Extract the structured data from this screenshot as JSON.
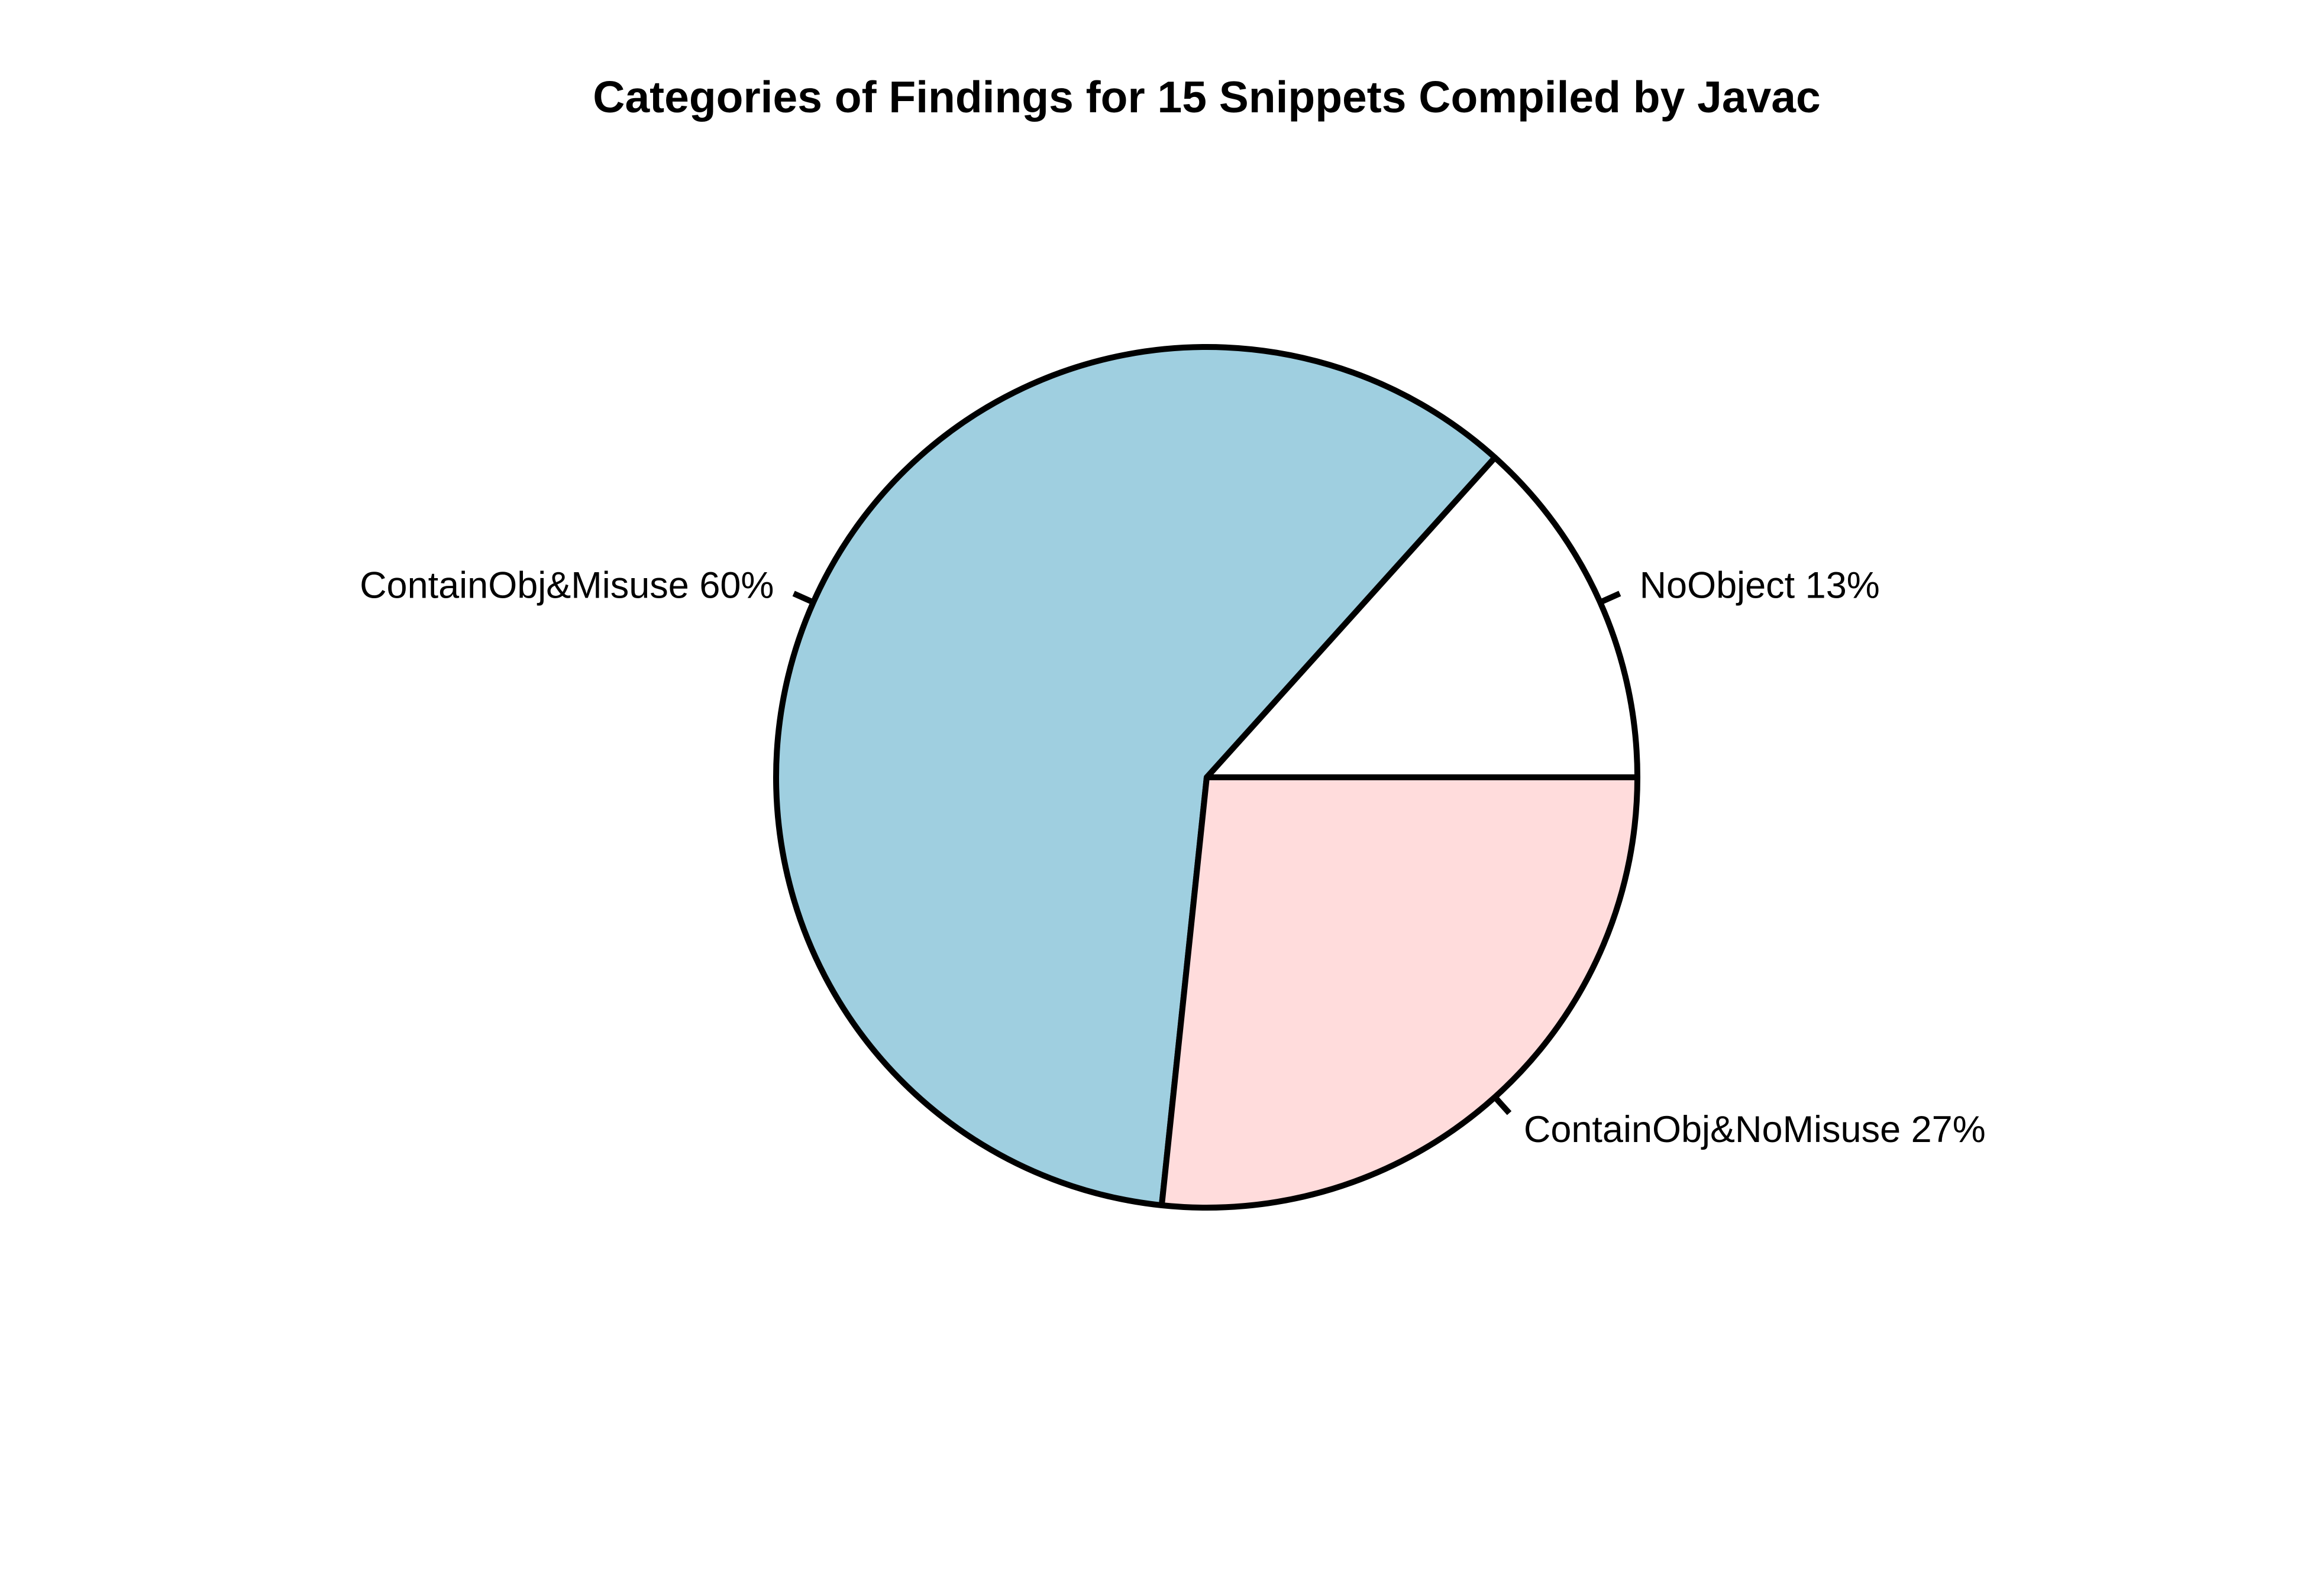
{
  "chart_data": {
    "type": "pie",
    "title": "Categories of Findings for 15 Snippets Compiled by Javac",
    "legend": "none",
    "slices": [
      {
        "label": "NoObject 13%",
        "value": 2,
        "percent": 13,
        "color": "#ffffff"
      },
      {
        "label": "ContainObj&Misuse 60%",
        "value": 9,
        "percent": 60,
        "color": "#9fcfe0"
      },
      {
        "label": "ContainObj&NoMisuse 27%",
        "value": 4,
        "percent": 27,
        "color": "#ffdcdc"
      }
    ],
    "start_angle_deg": 0,
    "direction": "counterclockwise",
    "edge_color": "#000000"
  }
}
